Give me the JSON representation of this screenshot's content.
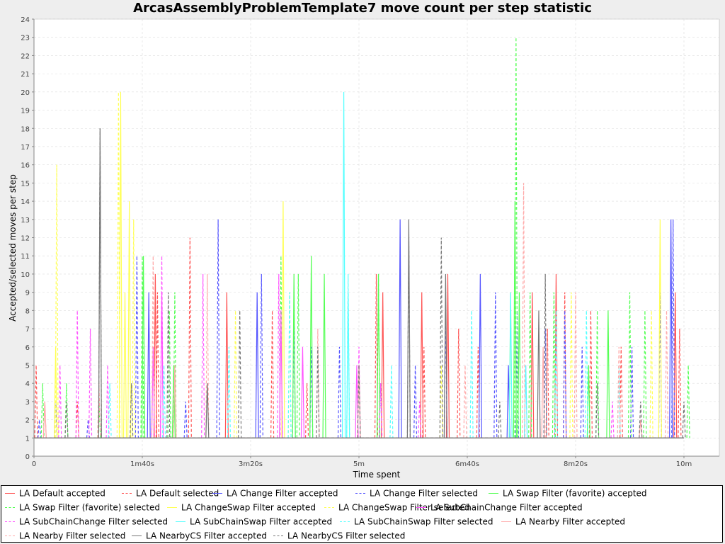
{
  "chart_data": {
    "type": "line",
    "title": "ArcasAssemblyProblemTemplate7 move count per step statistic",
    "xlabel": "Time spent",
    "ylabel": "Accepted/selected moves per step",
    "x_unit": "seconds",
    "xlim": [
      0,
      630
    ],
    "ylim": [
      0,
      24
    ],
    "x_ticks": [
      {
        "value": 0,
        "label": "0"
      },
      {
        "value": 100,
        "label": "1m40s"
      },
      {
        "value": 200,
        "label": "3m20s"
      },
      {
        "value": 300,
        "label": "5m"
      },
      {
        "value": 400,
        "label": "6m40s"
      },
      {
        "value": 500,
        "label": "8m20s"
      },
      {
        "value": 600,
        "label": "10m"
      }
    ],
    "y_ticks": [
      0,
      1,
      2,
      3,
      4,
      5,
      6,
      7,
      8,
      9,
      10,
      11,
      12,
      13,
      14,
      15,
      16,
      17,
      18,
      19,
      20,
      21,
      22,
      23,
      24
    ],
    "grid": true,
    "legend_position": "bottom",
    "series": [
      {
        "name": "LA Default accepted",
        "color": "#ff5555",
        "dashed": false,
        "points": [
          [
            0,
            1
          ],
          [
            600,
            1
          ]
        ],
        "spikes": [
          [
            112,
            10
          ],
          [
            178,
            9
          ],
          [
            322,
            9
          ],
          [
            358,
            9
          ],
          [
            382,
            10
          ],
          [
            460,
            9
          ],
          [
            482,
            10
          ],
          [
            592,
            9
          ]
        ]
      },
      {
        "name": "LA Default selected",
        "color": "#ff5555",
        "dashed": true,
        "points": [
          [
            0,
            1
          ],
          [
            600,
            1
          ]
        ],
        "spikes": [
          [
            2,
            5
          ],
          [
            40,
            3
          ],
          [
            114,
            9
          ],
          [
            144,
            12
          ],
          [
            220,
            8
          ],
          [
            252,
            4
          ],
          [
            316,
            10
          ],
          [
            360,
            6
          ],
          [
            392,
            7
          ],
          [
            410,
            6
          ],
          [
            474,
            7
          ],
          [
            490,
            9
          ],
          [
            514,
            8
          ],
          [
            542,
            6
          ],
          [
            596,
            7
          ]
        ]
      },
      {
        "name": "LA Change Filter accepted",
        "color": "#5555ff",
        "dashed": false,
        "points": [
          [
            0,
            1
          ],
          [
            600,
            1
          ]
        ],
        "spikes": [
          [
            106,
            9
          ],
          [
            206,
            9
          ],
          [
            338,
            13
          ],
          [
            412,
            10
          ],
          [
            438,
            5
          ],
          [
            588,
            13
          ]
        ]
      },
      {
        "name": "LA Change Filter selected",
        "color": "#5555ff",
        "dashed": true,
        "points": [
          [
            0,
            1
          ],
          [
            600,
            1
          ]
        ],
        "spikes": [
          [
            5,
            2
          ],
          [
            20,
            3
          ],
          [
            50,
            2
          ],
          [
            95,
            11
          ],
          [
            140,
            3
          ],
          [
            170,
            13
          ],
          [
            210,
            10
          ],
          [
            240,
            8
          ],
          [
            256,
            6
          ],
          [
            282,
            6
          ],
          [
            320,
            4
          ],
          [
            352,
            5
          ],
          [
            380,
            8
          ],
          [
            426,
            9
          ],
          [
            446,
            8
          ],
          [
            472,
            7
          ],
          [
            490,
            8
          ],
          [
            506,
            6
          ],
          [
            552,
            6
          ],
          [
            578,
            9
          ],
          [
            590,
            13
          ]
        ]
      },
      {
        "name": "LA Swap Filter (favorite) accepted",
        "color": "#55ff55",
        "dashed": false,
        "points": [
          [
            0,
            1
          ],
          [
            600,
            1
          ]
        ],
        "spikes": [
          [
            101,
            11
          ],
          [
            129,
            5
          ],
          [
            240,
            10
          ],
          [
            256,
            11
          ],
          [
            268,
            10
          ],
          [
            318,
            10
          ],
          [
            444,
            14
          ],
          [
            448,
            9
          ],
          [
            512,
            5
          ],
          [
            530,
            8
          ]
        ]
      },
      {
        "name": "LA Swap Filter (favorite) selected",
        "color": "#55ff55",
        "dashed": true,
        "points": [
          [
            0,
            1
          ],
          [
            600,
            1
          ]
        ],
        "spikes": [
          [
            8,
            4
          ],
          [
            30,
            4
          ],
          [
            60,
            3
          ],
          [
            100,
            11
          ],
          [
            125,
            8
          ],
          [
            130,
            9
          ],
          [
            228,
            11
          ],
          [
            244,
            10
          ],
          [
            318,
            10
          ],
          [
            445,
            23
          ],
          [
            458,
            9
          ],
          [
            480,
            9
          ],
          [
            520,
            8
          ],
          [
            550,
            9
          ],
          [
            564,
            8
          ],
          [
            604,
            5
          ]
        ]
      },
      {
        "name": "LA ChangeSwap Filter accepted",
        "color": "#ffff55",
        "dashed": false,
        "points": [
          [
            0,
            1
          ],
          [
            600,
            1
          ]
        ],
        "spikes": [
          [
            20,
            6
          ],
          [
            80,
            20
          ],
          [
            84,
            9
          ],
          [
            88,
            14
          ],
          [
            230,
            14
          ],
          [
            440,
            9
          ],
          [
            578,
            13
          ]
        ]
      },
      {
        "name": "LA ChangeSwap Filter selected",
        "color": "#ffff55",
        "dashed": true,
        "points": [
          [
            0,
            1
          ],
          [
            600,
            1
          ]
        ],
        "spikes": [
          [
            21,
            16
          ],
          [
            78,
            20
          ],
          [
            92,
            13
          ],
          [
            186,
            8
          ],
          [
            236,
            9
          ],
          [
            376,
            5
          ],
          [
            496,
            9
          ],
          [
            570,
            8
          ]
        ]
      },
      {
        "name": "LA SubChainChange Filter accepted",
        "color": "#ff55ff",
        "dashed": false,
        "points": [
          [
            0,
            1
          ],
          [
            600,
            1
          ]
        ],
        "spikes": [
          [
            110,
            6
          ],
          [
            118,
            9
          ],
          [
            228,
            8
          ],
          [
            248,
            6
          ],
          [
            298,
            5
          ]
        ]
      },
      {
        "name": "LA SubChainChange Filter selected",
        "color": "#ff55ff",
        "dashed": true,
        "points": [
          [
            0,
            1
          ],
          [
            600,
            1
          ]
        ],
        "spikes": [
          [
            24,
            5
          ],
          [
            40,
            8
          ],
          [
            52,
            7
          ],
          [
            68,
            5
          ],
          [
            118,
            11
          ],
          [
            156,
            10
          ],
          [
            226,
            10
          ],
          [
            300,
            6
          ],
          [
            320,
            4
          ],
          [
            356,
            3
          ],
          [
            454,
            5
          ],
          [
            534,
            3
          ]
        ]
      },
      {
        "name": "LA SubChainSwap Filter accepted",
        "color": "#55ffff",
        "dashed": false,
        "points": [
          [
            0,
            1
          ],
          [
            600,
            1
          ]
        ],
        "spikes": [
          [
            286,
            20
          ],
          [
            290,
            9
          ],
          [
            440,
            9
          ],
          [
            454,
            5
          ]
        ]
      },
      {
        "name": "LA SubChainSwap Filter selected",
        "color": "#55ffff",
        "dashed": true,
        "points": [
          [
            0,
            1
          ],
          [
            600,
            1
          ]
        ],
        "spikes": [
          [
            70,
            4
          ],
          [
            120,
            5
          ],
          [
            180,
            6
          ],
          [
            236,
            9
          ],
          [
            290,
            10
          ],
          [
            330,
            5
          ],
          [
            404,
            8
          ],
          [
            482,
            8
          ],
          [
            510,
            8
          ],
          [
            540,
            5
          ]
        ]
      },
      {
        "name": "LA Nearby Filter accepted",
        "color": "#ffaaaa",
        "dashed": false,
        "points": [
          [
            0,
            1
          ],
          [
            600,
            1
          ]
        ],
        "spikes": [
          [
            10,
            3
          ],
          [
            130,
            5
          ],
          [
            300,
            5
          ],
          [
            470,
            6
          ],
          [
            560,
            2
          ]
        ]
      },
      {
        "name": "LA Nearby Filter selected",
        "color": "#ffaaaa",
        "dashed": true,
        "points": [
          [
            0,
            1
          ],
          [
            600,
            1
          ]
        ],
        "spikes": [
          [
            10,
            3
          ],
          [
            60,
            4
          ],
          [
            110,
            11
          ],
          [
            160,
            10
          ],
          [
            262,
            7
          ],
          [
            398,
            5
          ],
          [
            452,
            15
          ],
          [
            500,
            9
          ],
          [
            540,
            6
          ],
          [
            584,
            8
          ]
        ]
      },
      {
        "name": "LA NearbyCS Filter accepted",
        "color": "#777777",
        "dashed": false,
        "points": [
          [
            0,
            1
          ],
          [
            600,
            1
          ]
        ],
        "spikes": [
          [
            61,
            18
          ],
          [
            160,
            4
          ],
          [
            346,
            13
          ],
          [
            380,
            10
          ],
          [
            466,
            8
          ]
        ]
      },
      {
        "name": "LA NearbyCS Filter selected",
        "color": "#777777",
        "dashed": true,
        "points": [
          [
            0,
            1
          ],
          [
            600,
            1
          ]
        ],
        "spikes": [
          [
            30,
            3
          ],
          [
            61,
            18
          ],
          [
            90,
            4
          ],
          [
            124,
            9
          ],
          [
            190,
            8
          ],
          [
            262,
            6
          ],
          [
            300,
            5
          ],
          [
            346,
            12
          ],
          [
            376,
            12
          ],
          [
            430,
            3
          ],
          [
            472,
            10
          ],
          [
            520,
            4
          ],
          [
            560,
            3
          ],
          [
            600,
            3
          ]
        ]
      }
    ]
  }
}
